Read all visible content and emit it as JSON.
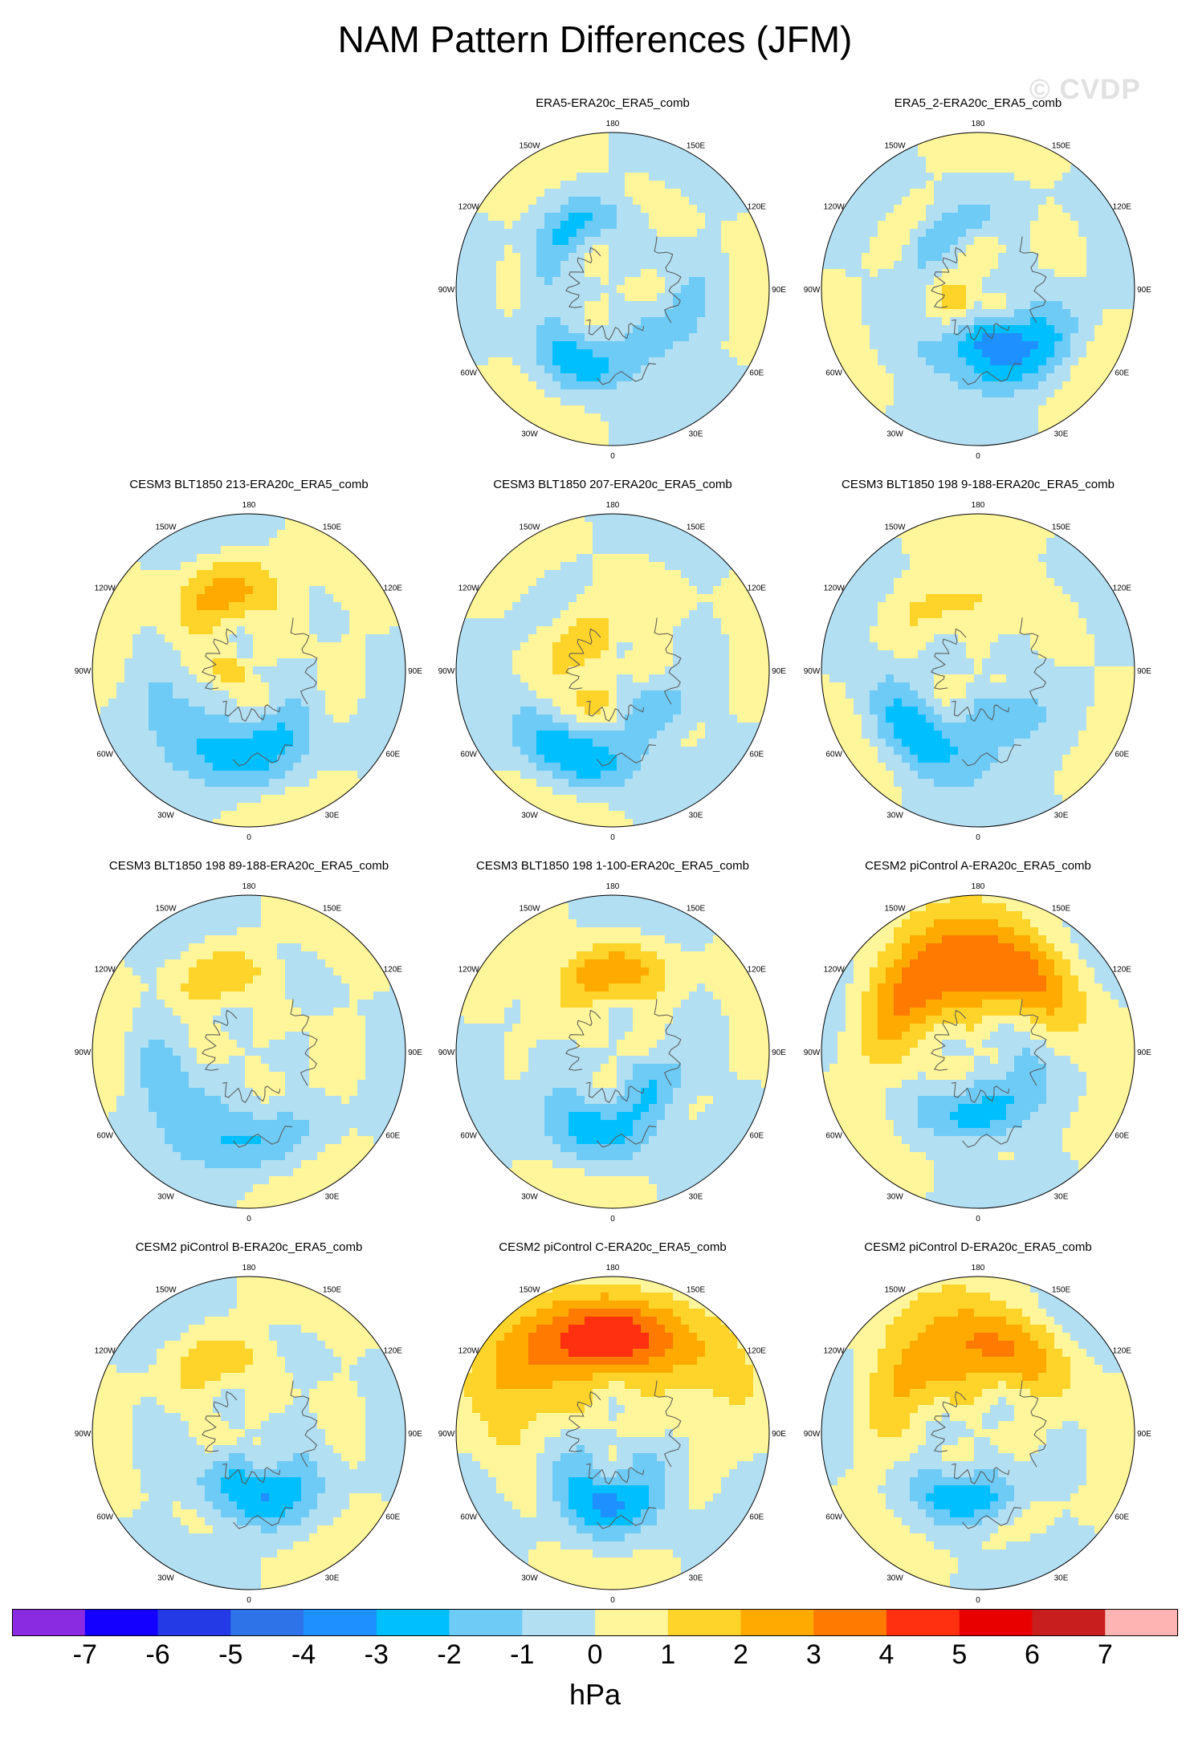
{
  "title": "NAM Pattern Differences (JFM)",
  "watermark": "© CVDP",
  "colorbar": {
    "unit": "hPa",
    "ticks": [
      "-7",
      "-6",
      "-5",
      "-4",
      "-3",
      "-2",
      "-1",
      "0",
      "1",
      "2",
      "3",
      "4",
      "5",
      "6",
      "7"
    ],
    "colors": [
      "#8a2be2",
      "#1400ff",
      "#233ae6",
      "#2e73e8",
      "#1e90ff",
      "#00bfff",
      "#6ecbf5",
      "#b2dff2",
      "#fff59a",
      "#ffd42a",
      "#ffaa00",
      "#ff7a00",
      "#ff3010",
      "#e80000",
      "#c81e1e",
      "#ffb4b4"
    ]
  },
  "lon_labels": [
    "180",
    "150E",
    "120E",
    "90E",
    "60E",
    "30E",
    "0",
    "30W",
    "60W",
    "90W",
    "120W",
    "150W"
  ],
  "panels": [
    {
      "row": 0,
      "col": 1,
      "title": "ERA5-ERA20c_ERA5_comb",
      "blobs": [
        {
          "lat": 58,
          "lon": -140,
          "rl": 7,
          "rw": 40,
          "v": -2
        },
        {
          "lat": 55,
          "lon": -25,
          "rl": 9,
          "rw": 30,
          "v": -2
        },
        {
          "lat": 58,
          "lon": 50,
          "rl": 9,
          "rw": 35,
          "v": -1.5
        }
      ]
    },
    {
      "row": 0,
      "col": 2,
      "title": "ERA5_2-ERA20c_ERA5_comb",
      "blobs": [
        {
          "lat": 60,
          "lon": -145,
          "rl": 6,
          "rw": 30,
          "v": -2
        },
        {
          "lat": 80,
          "lon": -80,
          "rl": 6,
          "rw": 50,
          "v": 1.5
        },
        {
          "lat": 55,
          "lon": 20,
          "rl": 10,
          "rw": 40,
          "v": -3
        },
        {
          "lat": 68,
          "lon": 20,
          "rl": 6,
          "rw": 30,
          "v": -2
        }
      ]
    },
    {
      "row": 1,
      "col": 0,
      "title": "CESM3 BLT1850 213-ERA20c_ERA5_comb",
      "blobs": [
        {
          "lat": 55,
          "lon": -160,
          "rl": 10,
          "rw": 40,
          "v": 2
        },
        {
          "lat": 82,
          "lon": -60,
          "rl": 6,
          "rw": 50,
          "v": 1.5
        },
        {
          "lat": 50,
          "lon": -30,
          "rl": 10,
          "rw": 40,
          "v": -2.5
        },
        {
          "lat": 62,
          "lon": 30,
          "rl": 8,
          "rw": 30,
          "v": -1.5
        }
      ]
    },
    {
      "row": 1,
      "col": 1,
      "title": "CESM3 BLT1850 207-ERA20c_ERA5_comb",
      "blobs": [
        {
          "lat": 70,
          "lon": -100,
          "rl": 10,
          "rw": 80,
          "v": 1.5
        },
        {
          "lat": 48,
          "lon": -30,
          "rl": 10,
          "rw": 35,
          "v": -2.5
        },
        {
          "lat": 62,
          "lon": 40,
          "rl": 8,
          "rw": 30,
          "v": -2
        }
      ]
    },
    {
      "row": 1,
      "col": 2,
      "title": "CESM3 BLT1850 198 9-188-ERA20c_ERA5_comb",
      "blobs": [
        {
          "lat": 55,
          "lon": -170,
          "rl": 8,
          "rw": 35,
          "v": 1.5
        },
        {
          "lat": 50,
          "lon": -30,
          "rl": 10,
          "rw": 40,
          "v": -2.5
        },
        {
          "lat": 68,
          "lon": 40,
          "rl": 8,
          "rw": 30,
          "v": -1.5
        }
      ]
    },
    {
      "row": 2,
      "col": 0,
      "title": "CESM3 BLT1850 198 89-188-ERA20c_ERA5_comb",
      "blobs": [
        {
          "lat": 55,
          "lon": -160,
          "rl": 8,
          "rw": 30,
          "v": 1.5
        },
        {
          "lat": 50,
          "lon": -30,
          "rl": 10,
          "rw": 40,
          "v": -2.5
        }
      ]
    },
    {
      "row": 2,
      "col": 1,
      "title": "CESM3 BLT1850 198 1-100-ERA20c_ERA5_comb",
      "blobs": [
        {
          "lat": 55,
          "lon": -170,
          "rl": 9,
          "rw": 35,
          "v": 2.5
        },
        {
          "lat": 55,
          "lon": -15,
          "rl": 10,
          "rw": 45,
          "v": -2
        },
        {
          "lat": 65,
          "lon": 50,
          "rl": 8,
          "rw": 30,
          "v": -1.5
        }
      ]
    },
    {
      "row": 2,
      "col": 2,
      "title": "CESM2 piControl A-ERA20c_ERA5_comb",
      "blobs": [
        {
          "lat": 50,
          "lon": -170,
          "rl": 14,
          "rw": 50,
          "v": 4.5
        },
        {
          "lat": 60,
          "lon": 0,
          "rl": 9,
          "rw": 35,
          "v": -2.5
        },
        {
          "lat": 68,
          "lon": 70,
          "rl": 7,
          "rw": 25,
          "v": -2
        }
      ]
    },
    {
      "row": 3,
      "col": 0,
      "title": "CESM2 piControl B-ERA20c_ERA5_comb",
      "blobs": [
        {
          "lat": 55,
          "lon": -160,
          "rl": 8,
          "rw": 30,
          "v": 1.5
        },
        {
          "lat": 62,
          "lon": 10,
          "rl": 10,
          "rw": 40,
          "v": -3
        }
      ]
    },
    {
      "row": 3,
      "col": 1,
      "title": "CESM2 piControl C-ERA20c_ERA5_comb",
      "blobs": [
        {
          "lat": 45,
          "lon": -170,
          "rl": 15,
          "rw": 50,
          "v": 4.5
        },
        {
          "lat": 60,
          "lon": -5,
          "rl": 10,
          "rw": 45,
          "v": -3
        }
      ]
    },
    {
      "row": 3,
      "col": 2,
      "title": "CESM2 piControl D-ERA20c_ERA5_comb",
      "blobs": [
        {
          "lat": 50,
          "lon": -170,
          "rl": 13,
          "rw": 45,
          "v": 3.5
        },
        {
          "lat": 60,
          "lon": -10,
          "rl": 8,
          "rw": 30,
          "v": -3
        }
      ]
    }
  ]
}
